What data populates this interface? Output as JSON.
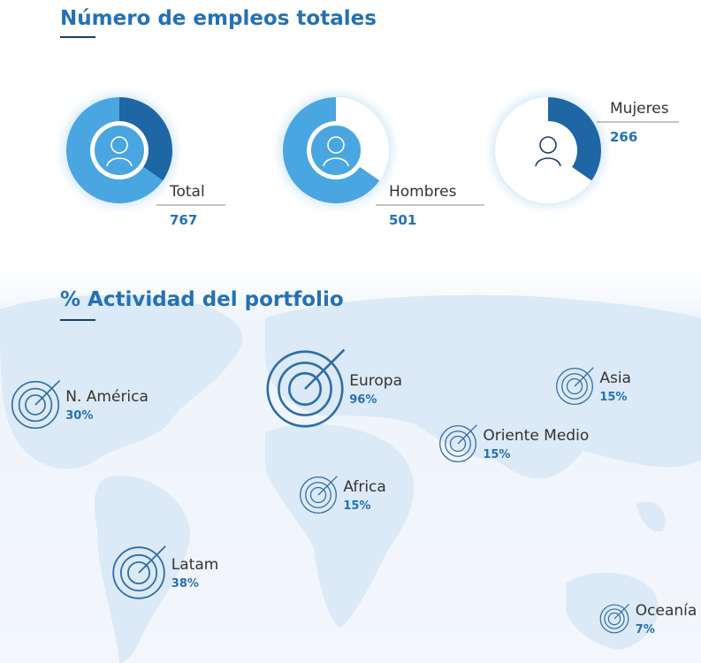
{
  "employment": {
    "title": "Número de empleos totales",
    "donuts": [
      {
        "label": "Total",
        "value": 767
      },
      {
        "label": "Hombres",
        "value": 501
      },
      {
        "label": "Mujeres",
        "value": 266
      }
    ]
  },
  "portfolio": {
    "title": "% Actividad del portfolio",
    "regions": [
      {
        "name": "N. América",
        "value": 30,
        "value_label": "30%"
      },
      {
        "name": "Europa",
        "value": 96,
        "value_label": "96%"
      },
      {
        "name": "Asia",
        "value": 15,
        "value_label": "15%"
      },
      {
        "name": "Oriente Medio",
        "value": 15,
        "value_label": "15%"
      },
      {
        "name": "Africa",
        "value": 15,
        "value_label": "15%"
      },
      {
        "name": "Latam",
        "value": 38,
        "value_label": "38%"
      },
      {
        "name": "Oceanía",
        "value": 7,
        "value_label": "7%"
      }
    ]
  }
}
